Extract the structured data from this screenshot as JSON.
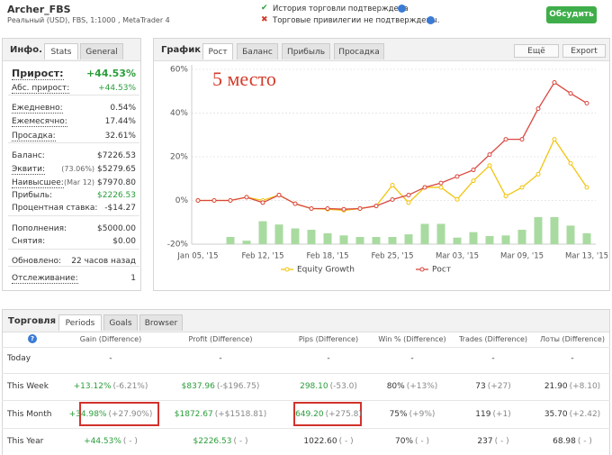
{
  "header": {
    "account": "Archer_FBS",
    "subtitle": "Реальный (USD), FBS, 1:1000 , MetaTrader 4",
    "verified": "История торговли подтверждена",
    "not_verified": "Торговые привилегии не подтверждены.",
    "button": "Обсудить"
  },
  "info": {
    "title": "Инфо.",
    "tabs": [
      "Stats",
      "General"
    ],
    "rows": [
      {
        "label": "Прирост:",
        "value": "+44.53%"
      },
      {
        "label": "Абс. прирост:",
        "value": "+44.53%"
      },
      {
        "label": "Ежедневно:",
        "value": "0.54%"
      },
      {
        "label": "Ежемесячно:",
        "value": "17.44%"
      },
      {
        "label": "Просадка:",
        "value": "32.61%"
      },
      {
        "label": "Баланс:",
        "value": "$7226.53"
      },
      {
        "label": "Эквити:",
        "note": "(73.06%)",
        "value": "$5279.65"
      },
      {
        "label": "Наивысшее:",
        "note": "(Mar 12)",
        "value": "$7970.80"
      },
      {
        "label": "Прибыль:",
        "value": "$2226.53"
      },
      {
        "label": "Процентная ставка:",
        "value": "-$14.27"
      },
      {
        "label": "Пополнения:",
        "value": "$5000.00"
      },
      {
        "label": "Снятия:",
        "value": "$0.00"
      },
      {
        "label": "Обновлено:",
        "value": "22 часов назад"
      },
      {
        "label": "Отслеживание:",
        "value": "1"
      }
    ]
  },
  "chart_data": {
    "type": "line",
    "title": "График",
    "tabs": [
      "Рост",
      "Баланс",
      "Прибыль",
      "Просадка"
    ],
    "buttons": [
      "Ещё",
      "Export"
    ],
    "annotation": "5 место",
    "categories": [
      "Jan 05, '15",
      null,
      null,
      null,
      "Feb 12, '15",
      null,
      null,
      null,
      "Feb 18, '15",
      null,
      null,
      null,
      "Feb 25, '15",
      null,
      null,
      null,
      "Mar 03, '15",
      null,
      null,
      null,
      "Mar 09, '15",
      null,
      null,
      null,
      "Mar 13, '15"
    ],
    "series": [
      {
        "type": "bar",
        "color": "#a9dba0",
        "values": [
          null,
          null,
          -16.7,
          -18.4,
          -9.5,
          -11,
          -12.8,
          -13.4,
          -15,
          -16,
          -16.7,
          -16.7,
          -16.7,
          -15.5,
          -10.7,
          -10.7,
          -17,
          -14.5,
          -16.3,
          -16,
          -13.4,
          -7.6,
          -7.6,
          -11.5,
          -15
        ]
      },
      {
        "name": "Equity Growth",
        "color": "#f2c40f",
        "values": [
          0,
          0,
          0,
          1.5,
          0,
          2.5,
          -1.5,
          -3.7,
          -4,
          -4.5,
          -3.7,
          -2.5,
          7,
          -1,
          6,
          6,
          0.5,
          9,
          16,
          2,
          6,
          12,
          28,
          17,
          6
        ]
      },
      {
        "name": "Рост",
        "color": "#d9473f",
        "values": [
          0,
          0,
          0,
          1.5,
          -1,
          2.5,
          -1.5,
          -3.7,
          -3.7,
          -4,
          -3.7,
          -2.5,
          0.4,
          2.5,
          6,
          8,
          11,
          14,
          21,
          28,
          28,
          42,
          54,
          49,
          44.53
        ]
      }
    ],
    "ylim": [
      -20,
      60
    ],
    "yticks": [
      {
        "value": -20,
        "label": "-20%"
      },
      {
        "value": 0,
        "label": "0%"
      },
      {
        "value": 20,
        "label": "20%"
      },
      {
        "value": 40,
        "label": "40%"
      },
      {
        "value": 60,
        "label": "60%"
      }
    ],
    "grid": true
  },
  "trading": {
    "title": "Торговля",
    "tabs": [
      "Periods",
      "Goals",
      "Browser"
    ],
    "help": "?",
    "columns": [
      "Gain (Difference)",
      "Profit (Difference)",
      "Pips (Difference)",
      "Win % (Difference)",
      "Trades (Difference)",
      "Лоты (Difference)"
    ],
    "rows": [
      {
        "label": "Today",
        "cells": [
          {
            "value": "-"
          },
          {
            "value": "-"
          },
          {
            "value": "-"
          },
          {
            "value": "-"
          },
          {
            "value": "-"
          },
          {
            "value": "-"
          }
        ]
      },
      {
        "label": "This Week",
        "cells": [
          {
            "value": "+13.12%",
            "diff": "(-6.21%)"
          },
          {
            "value": "$837.96",
            "diff": "(-$196.75)"
          },
          {
            "value": "298.10",
            "diff": "(-53.0)"
          },
          {
            "value": "80%",
            "diff": "(+13%)"
          },
          {
            "value": "73",
            "diff": "(+27)"
          },
          {
            "value": "21.90",
            "diff": "(+8.10)"
          }
        ]
      },
      {
        "label": "This Month",
        "cells": [
          {
            "value": "+34.98%",
            "diff": "(+27.90%)"
          },
          {
            "value": "$1872.67",
            "diff": "(+$1518.81)"
          },
          {
            "value": "649.20",
            "diff": "(+275.8)"
          },
          {
            "value": "75%",
            "diff": "(+9%)"
          },
          {
            "value": "119",
            "diff": "(+1)"
          },
          {
            "value": "35.70",
            "diff": "(+2.42)"
          }
        ]
      },
      {
        "label": "This Year",
        "cells": [
          {
            "value": "+44.53%",
            "diff": "( - )"
          },
          {
            "value": "$2226.53",
            "diff": "( - )"
          },
          {
            "value": "1022.60",
            "diff": "( - )"
          },
          {
            "value": "70%",
            "diff": "( - )"
          },
          {
            "value": "237",
            "diff": "( - )"
          },
          {
            "value": "68.98",
            "diff": "( - )"
          }
        ]
      }
    ]
  }
}
